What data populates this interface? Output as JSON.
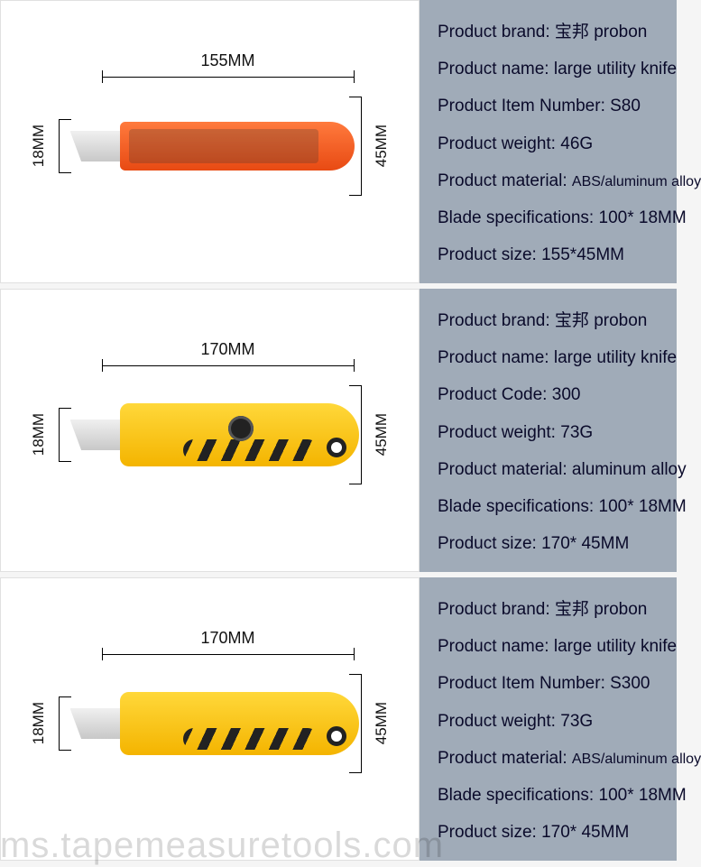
{
  "watermark": "ms.tapemeasuretools.com",
  "products": [
    {
      "dim_top": "155MM",
      "dim_left": "18MM",
      "dim_right": "45MM",
      "knife_style": "orange",
      "specs": [
        {
          "label": "Product brand:",
          "value": "宝邦 probon"
        },
        {
          "label": "Product name:",
          "value": "large utility knife"
        },
        {
          "label": "Product Item Number:",
          "value": "S80"
        },
        {
          "label": "Product weight:",
          "value": "46G"
        },
        {
          "label": "Product material:",
          "value": "ABS/aluminum alloy",
          "small": true
        },
        {
          "label": "Blade specifications:",
          "value": "100* 18MM"
        },
        {
          "label": "Product size:",
          "value": "155*45MM"
        }
      ]
    },
    {
      "dim_top": "170MM",
      "dim_left": "18MM",
      "dim_right": "45MM",
      "knife_style": "yellow-knob",
      "specs": [
        {
          "label": "Product brand:",
          "value": "宝邦 probon"
        },
        {
          "label": "Product name:",
          "value": "large utility knife"
        },
        {
          "label": "Product Code:",
          "value": "300"
        },
        {
          "label": "Product weight:",
          "value": "73G"
        },
        {
          "label": "Product material:",
          "value": "aluminum alloy"
        },
        {
          "label": "Blade specifications:",
          "value": "100* 18MM"
        },
        {
          "label": "Product size:",
          "value": "170* 45MM"
        }
      ]
    },
    {
      "dim_top": "170MM",
      "dim_left": "18MM",
      "dim_right": "45MM",
      "knife_style": "yellow-hole",
      "specs": [
        {
          "label": "Product brand:",
          "value": "宝邦 probon"
        },
        {
          "label": "Product name:",
          "value": "large utility knife"
        },
        {
          "label": "Product Item Number:",
          "value": "S300"
        },
        {
          "label": "Product weight:",
          "value": "73G"
        },
        {
          "label": "Product material:",
          "value": "ABS/aluminum alloy",
          "small": true
        },
        {
          "label": "Blade specifications:",
          "value": "100* 18MM"
        },
        {
          "label": "Product size:",
          "value": "170* 45MM"
        }
      ]
    }
  ],
  "colors": {
    "panel_bg": "#a0abb8",
    "text": "#0a0a2a",
    "orange": "#f05a1e",
    "yellow": "#f7c200"
  }
}
